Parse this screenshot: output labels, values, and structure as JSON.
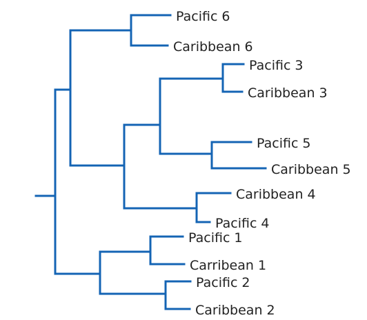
{
  "tree": {
    "branch_color": "#1464b4",
    "leaves": [
      {
        "id": "p6",
        "label": "Pacific 6"
      },
      {
        "id": "c6",
        "label": "Caribbean 6"
      },
      {
        "id": "p3",
        "label": "Pacific 3"
      },
      {
        "id": "c3",
        "label": "Caribbean 3"
      },
      {
        "id": "p5",
        "label": "Pacific 5"
      },
      {
        "id": "c5",
        "label": "Caribbean 5"
      },
      {
        "id": "c4",
        "label": "Caribbean 4"
      },
      {
        "id": "p4",
        "label": "Pacific 4"
      },
      {
        "id": "p1",
        "label": "Pacific 1"
      },
      {
        "id": "cb1",
        "label": "Carribean 1"
      },
      {
        "id": "p2",
        "label": "Pacific 2"
      },
      {
        "id": "c2",
        "label": "Caribbean 2"
      }
    ],
    "newick": "(((Pacific 6,Caribbean 6),(((Pacific 3,Caribbean 3),(Pacific 5,Caribbean 5)),(Caribbean 4,Pacific 4))),((Pacific 1,Carribean 1),(Pacific 2,Caribbean 2)))"
  }
}
